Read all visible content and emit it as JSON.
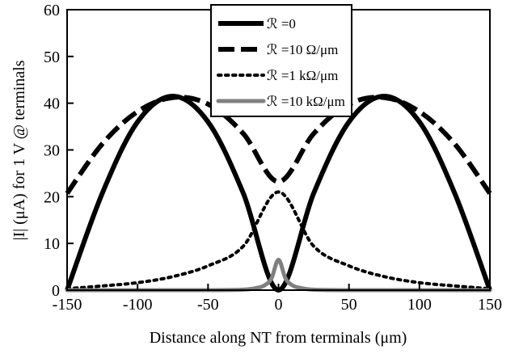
{
  "chart_data": {
    "type": "line",
    "xlabel": "Distance along NT from terminals (μm)",
    "ylabel": "|I| (μA) for 1 V @ terminals",
    "xlim": [
      -150,
      150
    ],
    "ylim": [
      0,
      60
    ],
    "x_ticks": [
      "-150",
      "-100",
      "-50",
      "0",
      "50",
      "100",
      "150"
    ],
    "y_ticks": [
      "0",
      "10",
      "20",
      "30",
      "40",
      "50",
      "60"
    ],
    "grid": false,
    "legend_position": "top-center",
    "series": [
      {
        "name": "ℛ =0",
        "style": "solid-thick",
        "color": "#000000",
        "x": [
          -150,
          -125,
          -100,
          -75,
          -50,
          -25,
          0,
          25,
          50,
          75,
          100,
          125,
          150
        ],
        "y": [
          0,
          20.75,
          36,
          41.5,
          36,
          20.75,
          0,
          20.75,
          36,
          41.5,
          36,
          20.75,
          0
        ]
      },
      {
        "name": "ℛ =10 Ω/μm",
        "style": "dashed",
        "color": "#000000",
        "x": [
          -150,
          -125,
          -100,
          -75,
          -50,
          -25,
          0,
          25,
          50,
          75,
          100,
          125,
          150
        ],
        "y": [
          20.7,
          31.3,
          38.2,
          41.2,
          39.8,
          33.5,
          23.2,
          33.5,
          39.8,
          41.2,
          38.2,
          31.3,
          20.7
        ]
      },
      {
        "name": "ℛ =1 kΩ/μm",
        "style": "dotted",
        "color": "#000000",
        "x": [
          -150,
          -125,
          -100,
          -75,
          -50,
          -25,
          0,
          25,
          50,
          75,
          100,
          125,
          150
        ],
        "y": [
          0.3,
          0.9,
          1.6,
          2.9,
          5.2,
          9.4,
          21,
          9.4,
          5.2,
          2.9,
          1.6,
          0.9,
          0.3
        ]
      },
      {
        "name": "ℛ =10 kΩ/μm",
        "style": "solid-gray",
        "color": "#808080",
        "x": [
          -150,
          -50,
          -25,
          -15,
          -10,
          -5,
          0,
          5,
          10,
          15,
          25,
          50,
          150
        ],
        "y": [
          0,
          0,
          0.1,
          0.5,
          1.0,
          2.5,
          6.5,
          2.5,
          1.0,
          0.5,
          0.1,
          0,
          0
        ]
      }
    ]
  }
}
